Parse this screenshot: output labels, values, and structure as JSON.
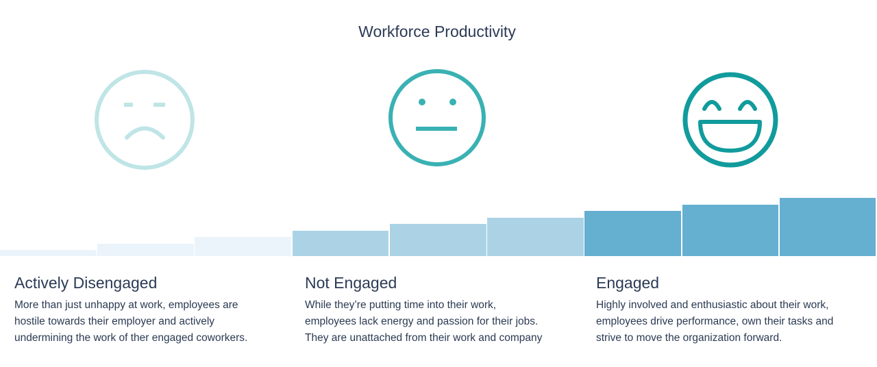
{
  "title": "Workforce Productivity",
  "colors": {
    "disengaged": "#bfe5e6",
    "not_engaged": "#3ab1b3",
    "engaged": "#119b9c",
    "bar_light": "#eaf4fa",
    "bar_mid": "#acd3e5",
    "bar_dark": "#65afd0"
  },
  "categories": [
    {
      "heading": "Actively Disengaged",
      "icon": "sad-face-icon",
      "body": "More than just unhappy at work, employees are\nhostile towards their employer and actively\nundermining the work of ther engaged coworkers."
    },
    {
      "heading": "Not Engaged",
      "icon": "neutral-face-icon",
      "body": "While they’re putting time into their work,\nemployees lack energy and passion for their jobs.\nThey are unattached from their work and company"
    },
    {
      "heading": "Engaged",
      "icon": "happy-face-icon",
      "body": "Highly involved and enthusiastic about their work,\nemployees drive performance, own their tasks and\nstrive to move the organization forward."
    }
  ],
  "productivity_levels": [
    {
      "level": 1,
      "group": "disengaged"
    },
    {
      "level": 2,
      "group": "disengaged"
    },
    {
      "level": 3,
      "group": "disengaged"
    },
    {
      "level": 4,
      "group": "not_engaged"
    },
    {
      "level": 5,
      "group": "not_engaged"
    },
    {
      "level": 6,
      "group": "not_engaged"
    },
    {
      "level": 7,
      "group": "engaged"
    },
    {
      "level": 8,
      "group": "engaged"
    },
    {
      "level": 9,
      "group": "engaged"
    }
  ]
}
